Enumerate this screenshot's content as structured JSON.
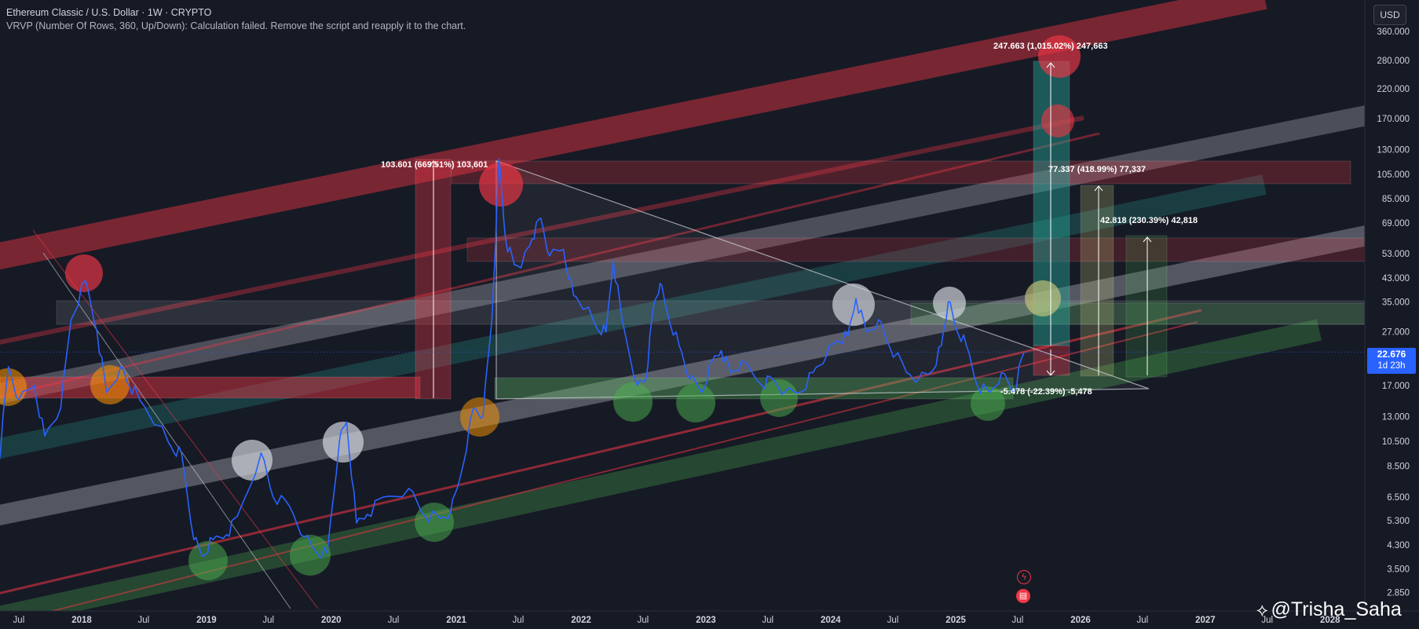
{
  "header": {
    "title": "Ethereum Classic / U.S. Dollar · 1W · CRYPTO",
    "indicator_note": "VRVP (Number Of Rows, 360, Up/Down): Calculation failed. Remove the script and reapply it to the chart."
  },
  "currency_button": "USD",
  "last_price": {
    "value": "22.676",
    "countdown": "1d 23h",
    "color": "#2962ff"
  },
  "watermark": {
    "handle": "@Trisha_Saha",
    "icon": "tradingview-logo-icon"
  },
  "colors": {
    "background": "#161a25",
    "price_line": "#2962ff",
    "red_band": "#f23645",
    "gray_band": "#b2b5be",
    "green_band": "#4caf50",
    "teal_band": "#26a69a"
  },
  "chart_data": {
    "type": "line",
    "scale": "log",
    "title": "Ethereum Classic / U.S. Dollar · 1W · CRYPTO",
    "ylim": [
      2.75,
      370
    ],
    "xlim": [
      "2017-05-01",
      "2028-03-01"
    ],
    "x_ticks": [
      "Jul",
      "2018",
      "Jul",
      "2019",
      "Jul",
      "2020",
      "Jul",
      "2021",
      "Jul",
      "2022",
      "Jul",
      "2023",
      "Jul",
      "2024",
      "Jul",
      "2025",
      "Jul",
      "2026",
      "Jul",
      "2027",
      "Jul",
      "2028"
    ],
    "y_ticks": [
      "360.000",
      "280.000",
      "220.000",
      "170.000",
      "130.000",
      "105.000",
      "85.000",
      "69.000",
      "53.000",
      "43.000",
      "35.000",
      "27.000",
      "17.000",
      "13.000",
      "10.500",
      "8.500",
      "6.500",
      "5.300",
      "4.300",
      "3.500",
      "2.850"
    ],
    "series": [
      {
        "name": "ETC/USD",
        "points": [
          [
            "2017-05-01",
            8.0
          ],
          [
            "2017-06-01",
            20
          ],
          [
            "2017-07-01",
            15
          ],
          [
            "2017-08-15",
            17
          ],
          [
            "2017-09-15",
            11
          ],
          [
            "2017-11-01",
            14
          ],
          [
            "2017-12-01",
            30
          ],
          [
            "2018-01-12",
            42
          ],
          [
            "2018-02-15",
            27
          ],
          [
            "2018-03-15",
            16
          ],
          [
            "2018-04-25",
            20
          ],
          [
            "2018-05-20",
            17
          ],
          [
            "2018-06-20",
            15
          ],
          [
            "2018-08-15",
            12
          ],
          [
            "2018-09-20",
            10
          ],
          [
            "2018-10-20",
            9.5
          ],
          [
            "2018-11-25",
            4.5
          ],
          [
            "2018-12-20",
            3.9
          ],
          [
            "2019-01-20",
            4.5
          ],
          [
            "2019-03-01",
            4.7
          ],
          [
            "2019-04-01",
            5.5
          ],
          [
            "2019-06-10",
            9.5
          ],
          [
            "2019-07-15",
            6.5
          ],
          [
            "2019-09-01",
            6.0
          ],
          [
            "2019-10-15",
            4.6
          ],
          [
            "2019-11-15",
            4.1
          ],
          [
            "2019-12-20",
            4.0
          ],
          [
            "2020-01-25",
            10.5
          ],
          [
            "2020-02-15",
            12.4
          ],
          [
            "2020-03-15",
            5.2
          ],
          [
            "2020-04-15",
            5.6
          ],
          [
            "2020-06-01",
            6.5
          ],
          [
            "2020-08-15",
            7.0
          ],
          [
            "2020-10-01",
            5.5
          ],
          [
            "2020-11-15",
            5.4
          ],
          [
            "2020-12-15",
            5.7
          ],
          [
            "2021-01-10",
            7.5
          ],
          [
            "2021-02-20",
            14
          ],
          [
            "2021-03-20",
            13
          ],
          [
            "2021-04-15",
            30
          ],
          [
            "2021-05-06",
            120
          ],
          [
            "2021-05-25",
            60
          ],
          [
            "2021-06-20",
            48
          ],
          [
            "2021-07-15",
            50
          ],
          [
            "2021-08-10",
            60
          ],
          [
            "2021-09-05",
            72
          ],
          [
            "2021-10-01",
            52
          ],
          [
            "2021-11-10",
            55
          ],
          [
            "2021-12-10",
            37
          ],
          [
            "2022-01-15",
            33
          ],
          [
            "2022-02-15",
            28
          ],
          [
            "2022-03-15",
            27
          ],
          [
            "2022-04-05",
            50
          ],
          [
            "2022-05-01",
            30
          ],
          [
            "2022-06-15",
            17
          ],
          [
            "2022-07-10",
            18
          ],
          [
            "2022-08-01",
            34
          ],
          [
            "2022-08-20",
            41
          ],
          [
            "2022-09-10",
            32
          ],
          [
            "2022-10-15",
            24
          ],
          [
            "2022-11-15",
            18
          ],
          [
            "2022-12-20",
            16
          ],
          [
            "2023-01-20",
            21
          ],
          [
            "2023-02-15",
            23
          ],
          [
            "2023-03-15",
            19
          ],
          [
            "2023-04-15",
            21
          ],
          [
            "2023-06-15",
            17
          ],
          [
            "2023-07-15",
            18
          ],
          [
            "2023-08-20",
            16
          ],
          [
            "2023-10-01",
            16
          ],
          [
            "2023-11-10",
            19
          ],
          [
            "2023-12-20",
            22
          ],
          [
            "2024-01-20",
            25
          ],
          [
            "2024-02-20",
            26
          ],
          [
            "2024-03-15",
            36
          ],
          [
            "2024-04-15",
            27
          ],
          [
            "2024-05-20",
            30
          ],
          [
            "2024-06-20",
            24
          ],
          [
            "2024-08-10",
            19
          ],
          [
            "2024-09-15",
            18
          ],
          [
            "2024-10-20",
            19
          ],
          [
            "2024-11-20",
            24
          ],
          [
            "2024-12-10",
            35
          ],
          [
            "2025-01-01",
            28
          ],
          [
            "2025-02-01",
            24
          ],
          [
            "2025-03-05",
            17
          ],
          [
            "2025-04-10",
            16
          ],
          [
            "2025-05-15",
            19
          ],
          [
            "2025-06-20",
            16
          ],
          [
            "2025-07-20",
            22.676
          ]
        ]
      }
    ],
    "annotations": [
      {
        "text": "103.601 (669.51%) 103,601"
      },
      {
        "text": "247.663 (1,015.02%) 247,663"
      },
      {
        "text": "77.337 (418.99%) 77,337"
      },
      {
        "text": "42.818 (230.39%) 42,818"
      },
      {
        "text": "-5.478 (-22.39%) -5,478"
      }
    ],
    "grid": false
  }
}
